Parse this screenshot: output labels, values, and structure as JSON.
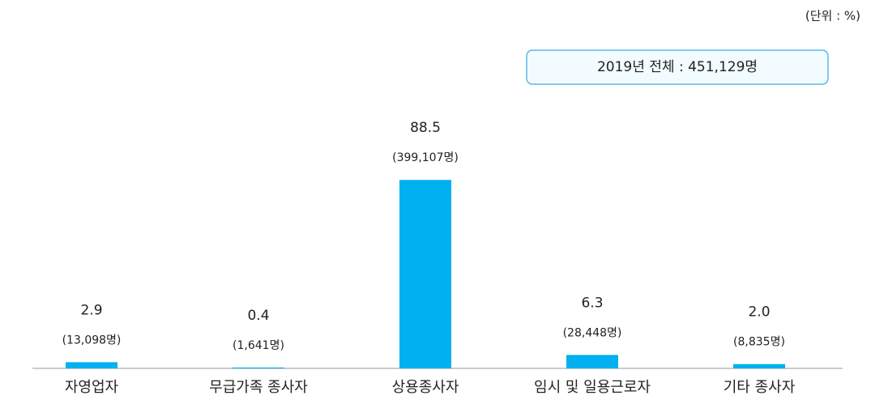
{
  "chart_data": {
    "type": "bar",
    "unit": "(단위 : %)",
    "annotation": "2019년 전체 : 451,129명",
    "categories": [
      "자영업자",
      "무급가족 종사자",
      "상용종사자",
      "임시 및 일용근로자",
      "기타 종사자"
    ],
    "values": [
      2.9,
      0.4,
      88.5,
      6.3,
      2.0
    ],
    "value_labels": [
      "2.9",
      "0.4",
      "88.5",
      "6.3",
      "2.0"
    ],
    "count_labels": [
      "(13,098명)",
      "(1,641명)",
      "(399,107명)",
      "(28,448명)",
      "(8,835명)"
    ],
    "color": "#00b0f0",
    "ylim": [
      0,
      100
    ]
  }
}
